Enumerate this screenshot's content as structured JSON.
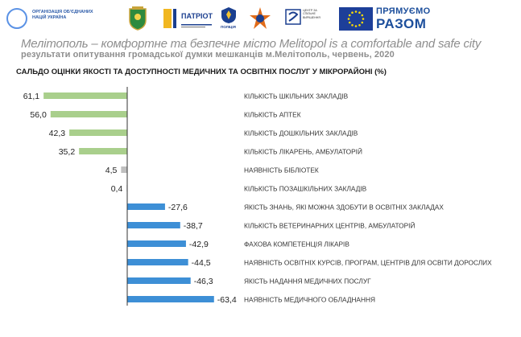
{
  "header": {
    "un_text": "ОРГАНІЗАЦІЯ ОБ'ЄДНАНИХ НАЦІЙ УКРАЇНА",
    "patriot_label": "ПАТРІОТ",
    "police_label": "ПОЛІЦІЯ",
    "sdo_text": "ЦЕНТР ЗА СПІЛЬНЕ ВИРІШЕННЯ",
    "razom_top": "ПРЯМУЄМО",
    "razom_bottom": "РАЗОМ",
    "tagline": "Мелітополь – комфортне та безпечне місто  Melitopol is a comfortable and safe city",
    "subtitle": "результати опитування громадської думки мешканців м.Мелітополь, червень, 2020",
    "title": "САЛЬДО ОЦІНКИ ЯКОСТІ ТА ДОСТУПНОСТІ МЕДИЧНИХ ТА ОСВІТНІХ ПОСЛУГ У МІКРОРАЙОНІ (%)"
  },
  "colors": {
    "positive": "#a9cf8c",
    "small": "#bfbfbf",
    "negative": "#3d8fd6",
    "axis": "#333333",
    "eu_blue": "#1d3f99",
    "eu_star": "#ffdd00",
    "razom_blue": "#1d4f9c"
  },
  "chart_data": {
    "type": "bar",
    "orientation": "horizontal",
    "title": "САЛЬДО ОЦІНКИ ЯКОСТІ ТА ДОСТУПНОСТІ МЕДИЧНИХ ТА ОСВІТНІХ ПОСЛУГ У МІКРОРАЙОНІ (%)",
    "xlim": [
      -66,
      66
    ],
    "grid": false,
    "categories": [
      "КІЛЬКІСТЬ ШКІЛЬНИХ ЗАКЛАДІВ",
      "КІЛЬКІСТЬ АПТЕК",
      "КІЛЬКІСТЬ ДОШКІЛЬНИХ ЗАКЛАДІВ",
      "КІЛЬКІСТЬ ЛІКАРЕНЬ, АМБУЛАТОРІЙ",
      "НАЯВНІСТЬ БІБЛІОТЕК",
      "КІЛЬКІСТЬ ПОЗАШКІЛЬНИХ ЗАКЛАДІВ",
      "ЯКІСТЬ ЗНАНЬ, ЯКІ МОЖНА ЗДОБУТИ В ОСВІТНІХ ЗАКЛАДАХ",
      "КІЛЬКІСТЬ ВЕТЕРИНАРНИХ ЦЕНТРІВ, АМБУЛАТОРІЙ",
      "ФАХОВА КОМПЕТЕНЦІЯ ЛІКАРІВ",
      "НАЯВНІСТЬ ОСВІТНІХ КУРСІВ, ПРОГРАМ, ЦЕНТРІВ ДЛЯ ОСВІТИ ДОРОСЛИХ",
      "ЯКІСТЬ НАДАННЯ МЕДИЧНИХ ПОСЛУГ",
      "НАЯВНІСТЬ МЕДИЧНОГО ОБЛАДНАННЯ"
    ],
    "values": [
      61.1,
      56.0,
      42.3,
      35.2,
      4.5,
      0.4,
      -27.6,
      -38.7,
      -42.9,
      -44.5,
      -46.3,
      -63.4
    ],
    "value_labels": [
      "61,1",
      "56,0",
      "42,3",
      "35,2",
      "4,5",
      "0,4",
      "-27,6",
      "-38,7",
      "-42,9",
      "-44,5",
      "-46,3",
      "-63,4"
    ]
  }
}
